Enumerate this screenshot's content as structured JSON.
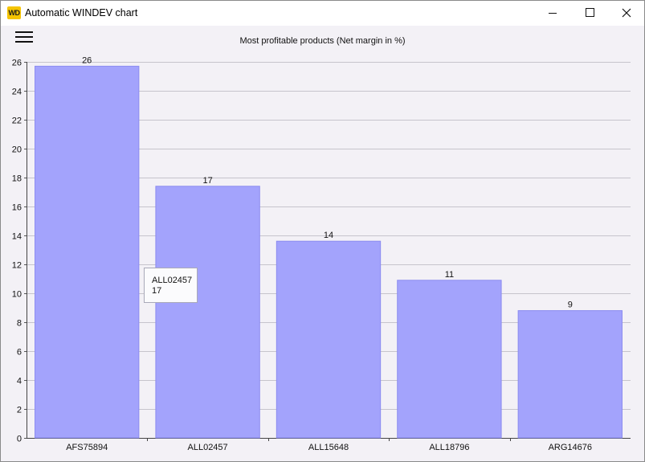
{
  "window": {
    "title": "Automatic WINDEV chart",
    "app_icon_label": "WD"
  },
  "chart_data": {
    "type": "bar",
    "title": "Most profitable products (Net margin in %)",
    "categories": [
      "AFS75894",
      "ALL02457",
      "ALL15648",
      "ALL18796",
      "ARG14676"
    ],
    "values": [
      25.7,
      17.4,
      13.6,
      10.9,
      8.8
    ],
    "data_labels": [
      "26",
      "17",
      "14",
      "11",
      "9"
    ],
    "ylim": [
      0,
      26
    ],
    "yticks": [
      0,
      2,
      4,
      6,
      8,
      10,
      12,
      14,
      16,
      18,
      20,
      22,
      24,
      26
    ],
    "xlabel": "",
    "ylabel": "",
    "grid": true,
    "bar_color": "#a3a3fc",
    "bar_edge_color": "#8b8bf0"
  },
  "tooltip": {
    "category": "ALL02457",
    "value": "17"
  }
}
